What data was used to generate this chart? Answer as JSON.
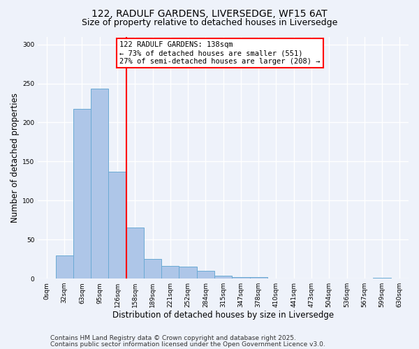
{
  "title_line1": "122, RADULF GARDENS, LIVERSEDGE, WF15 6AT",
  "title_line2": "Size of property relative to detached houses in Liversedge",
  "xlabel": "Distribution of detached houses by size in Liversedge",
  "ylabel": "Number of detached properties",
  "categories": [
    "0sqm",
    "32sqm",
    "63sqm",
    "95sqm",
    "126sqm",
    "158sqm",
    "189sqm",
    "221sqm",
    "252sqm",
    "284sqm",
    "315sqm",
    "347sqm",
    "378sqm",
    "410sqm",
    "441sqm",
    "473sqm",
    "504sqm",
    "536sqm",
    "567sqm",
    "599sqm",
    "630sqm"
  ],
  "values": [
    0,
    30,
    217,
    243,
    137,
    65,
    25,
    16,
    15,
    10,
    4,
    2,
    2,
    0,
    0,
    0,
    0,
    0,
    0,
    1,
    0
  ],
  "bar_color": "#aec6e8",
  "bar_edge_color": "#6aaad4",
  "vline_color": "red",
  "vline_x": 4.5,
  "annotation_text": "122 RADULF GARDENS: 138sqm\n← 73% of detached houses are smaller (551)\n27% of semi-detached houses are larger (208) →",
  "annotation_box_color": "white",
  "annotation_box_edge_color": "red",
  "ylim": [
    0,
    310
  ],
  "yticks": [
    0,
    50,
    100,
    150,
    200,
    250,
    300
  ],
  "footer_line1": "Contains HM Land Registry data © Crown copyright and database right 2025.",
  "footer_line2": "Contains public sector information licensed under the Open Government Licence v3.0.",
  "background_color": "#eef2fa",
  "grid_color": "white",
  "title_fontsize": 10,
  "subtitle_fontsize": 9,
  "axis_label_fontsize": 8.5,
  "tick_fontsize": 6.5,
  "annotation_fontsize": 7.5,
  "footer_fontsize": 6.5
}
